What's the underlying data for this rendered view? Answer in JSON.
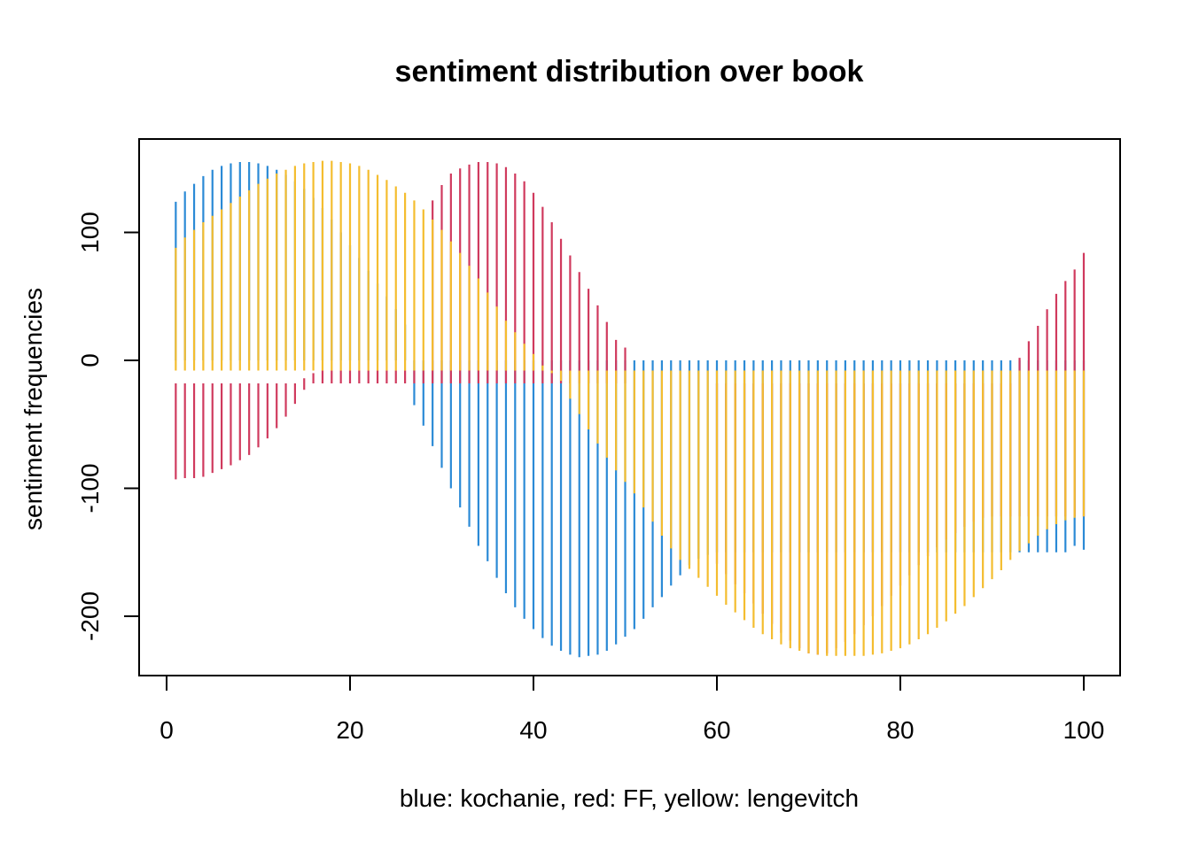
{
  "chart_data": {
    "type": "bar",
    "title": "sentiment distribution over book",
    "xlabel": "blue: kochanie, red: FF, yellow: lengevitch",
    "ylabel": "sentiment frequencies",
    "xlim": [
      0,
      100
    ],
    "ylim": [
      -250,
      160
    ],
    "x_ticks": [
      0,
      20,
      40,
      60,
      80,
      100
    ],
    "y_ticks": [
      -200,
      -100,
      0,
      100
    ],
    "x_tick_labels": [
      "0",
      "20",
      "40",
      "60",
      "80",
      "100"
    ],
    "y_tick_labels": [
      "-200",
      "-100",
      "0",
      "100"
    ],
    "grid": false,
    "legend": "none",
    "x": [
      1,
      2,
      3,
      4,
      5,
      6,
      7,
      8,
      9,
      10,
      11,
      12,
      13,
      14,
      15,
      16,
      17,
      18,
      19,
      20,
      21,
      22,
      23,
      24,
      25,
      26,
      27,
      28,
      29,
      30,
      31,
      32,
      33,
      34,
      35,
      36,
      37,
      38,
      39,
      40,
      41,
      42,
      43,
      44,
      45,
      46,
      47,
      48,
      49,
      50,
      51,
      52,
      53,
      54,
      55,
      56,
      57,
      58,
      59,
      60,
      61,
      62,
      63,
      64,
      65,
      66,
      67,
      68,
      69,
      70,
      71,
      72,
      73,
      74,
      75,
      76,
      77,
      78,
      79,
      80,
      81,
      82,
      83,
      84,
      85,
      86,
      87,
      88,
      89,
      90,
      91,
      92,
      93,
      94,
      95,
      96,
      97,
      98,
      99,
      100
    ],
    "series": [
      {
        "color": "#2b8ad6",
        "low": [
          0,
          0,
          0,
          0,
          0,
          0,
          0,
          0,
          0,
          0,
          0,
          0,
          0,
          0,
          0,
          0,
          0,
          0,
          0,
          0,
          0,
          0,
          0,
          0,
          0,
          0,
          -35,
          -51,
          -67,
          -84,
          -100,
          -115,
          -130,
          -145,
          -157,
          -170,
          -182,
          -193,
          -202,
          -210,
          -217,
          -223,
          -227,
          -230,
          -232,
          -231,
          -230,
          -227,
          -222,
          -216,
          -210,
          -202,
          -193,
          -185,
          -176,
          -168,
          -160,
          -155,
          -152,
          -150,
          -150,
          -150,
          -150,
          -150,
          -150,
          -150,
          -150,
          -150,
          -150,
          -150,
          -150,
          -150,
          -150,
          -150,
          -150,
          -150,
          -150,
          -150,
          -150,
          -150,
          -150,
          -150,
          -150,
          -150,
          -150,
          -150,
          -150,
          -150,
          -150,
          -150,
          -150,
          -150,
          -150,
          -150,
          -150,
          -150,
          -150,
          -150,
          -145,
          -148
        ],
        "high": [
          124,
          132,
          138,
          144,
          149,
          152,
          154,
          155,
          155,
          154,
          152,
          149,
          145,
          140,
          134,
          127,
          119,
          110,
          100,
          90,
          80,
          70,
          60,
          50,
          40,
          28,
          0,
          0,
          0,
          0,
          0,
          0,
          0,
          0,
          0,
          0,
          0,
          0,
          0,
          0,
          0,
          0,
          0,
          0,
          0,
          0,
          0,
          0,
          0,
          0,
          0,
          0,
          0,
          0,
          0,
          0,
          0,
          0,
          0,
          0,
          0,
          0,
          0,
          0,
          0,
          0,
          0,
          0,
          0,
          0,
          0,
          0,
          0,
          0,
          0,
          0,
          0,
          0,
          0,
          0,
          0,
          0,
          0,
          0,
          0,
          0,
          0,
          0,
          0,
          0,
          0,
          0,
          0,
          0,
          0,
          0,
          0,
          0,
          0,
          0
        ]
      },
      {
        "color": "#d03a5e",
        "low": [
          -93,
          -92,
          -92,
          -91,
          -88,
          -85,
          -82,
          -78,
          -74,
          -68,
          -61,
          -53,
          -44,
          -34,
          -23,
          -18,
          -18,
          -18,
          -18,
          -18,
          -18,
          -18,
          -18,
          -18,
          -18,
          -18,
          -18,
          -18,
          -18,
          -18,
          -18,
          -18,
          -18,
          -18,
          -18,
          -18,
          -18,
          -18,
          -18,
          -18,
          -18,
          -18,
          -18,
          -18,
          -18,
          -18,
          -18,
          -18,
          -18,
          -18,
          -18,
          -18,
          -18,
          -18,
          -18,
          -18,
          -18,
          -18,
          -18,
          -159,
          -167,
          -175,
          -182,
          -190,
          -198,
          -206,
          -213,
          -219,
          -225,
          -229,
          -230,
          -229,
          -225,
          -220,
          -214,
          -207,
          -200,
          -192,
          -184,
          -176,
          -168,
          -160,
          -153,
          -146,
          -140,
          -135,
          -130,
          -126,
          -123,
          -122,
          -122,
          -122,
          -122,
          -122,
          -122,
          -122,
          -122,
          -122,
          -122,
          -122
        ],
        "high": [
          -18,
          -18,
          -18,
          -18,
          -18,
          -18,
          -18,
          -18,
          -18,
          -18,
          -18,
          -18,
          -18,
          -18,
          -14,
          -10,
          -8,
          -8,
          -8,
          -8,
          -8,
          -8,
          -8,
          -8,
          -8,
          -8,
          -8,
          -8,
          125,
          137,
          146,
          150,
          153,
          155,
          155,
          154,
          151,
          146,
          140,
          131,
          120,
          108,
          95,
          82,
          69,
          56,
          43,
          30,
          16,
          10,
          -18,
          -18,
          -18,
          -18,
          -18,
          -18,
          -18,
          -18,
          -18,
          -18,
          -18,
          -18,
          -18,
          -18,
          -18,
          -18,
          -18,
          -18,
          -18,
          -18,
          -18,
          -18,
          -18,
          -18,
          -18,
          -18,
          -18,
          -18,
          -18,
          -18,
          -18,
          -18,
          -18,
          -18,
          -18,
          -18,
          -18,
          -18,
          -18,
          -18,
          -18,
          -18,
          2,
          15,
          27,
          40,
          52,
          62,
          71,
          84
        ]
      },
      {
        "color": "#f4bd2f",
        "low": [
          -8,
          -8,
          -8,
          -8,
          -8,
          -8,
          -8,
          -8,
          -8,
          -8,
          -8,
          -8,
          -8,
          -8,
          -8,
          -8,
          -8,
          -8,
          -8,
          -8,
          -8,
          -8,
          -8,
          -8,
          -8,
          -8,
          -8,
          -8,
          -8,
          -8,
          -8,
          -8,
          -8,
          -8,
          -8,
          -8,
          -8,
          -8,
          -8,
          -8,
          -8,
          -10,
          -16,
          -30,
          -42,
          -54,
          -65,
          -76,
          -86,
          -95,
          -104,
          -115,
          -126,
          -137,
          -147,
          -156,
          -163,
          -170,
          -177,
          -184,
          -191,
          -197,
          -203,
          -209,
          -214,
          -218,
          -222,
          -225,
          -227,
          -229,
          -230,
          -231,
          -231,
          -231,
          -231,
          -231,
          -230,
          -229,
          -227,
          -225,
          -222,
          -218,
          -214,
          -209,
          -204,
          -198,
          -192,
          -185,
          -178,
          -171,
          -164,
          -156,
          -149,
          -143,
          -137,
          -132,
          -128,
          -125,
          -123,
          -122
        ],
        "high": [
          88,
          96,
          102,
          108,
          113,
          118,
          123,
          128,
          133,
          138,
          142,
          146,
          149,
          152,
          154,
          155,
          156,
          156,
          155,
          154,
          152,
          149,
          145,
          141,
          136,
          131,
          125,
          118,
          110,
          102,
          93,
          84,
          74,
          64,
          53,
          42,
          31,
          22,
          13,
          5,
          -4,
          -8,
          -8,
          -8,
          -8,
          -8,
          -8,
          -8,
          -8,
          -8,
          -8,
          -8,
          -8,
          -8,
          -8,
          -8,
          -8,
          -8,
          -8,
          -8,
          -8,
          -8,
          -8,
          -8,
          -8,
          -8,
          -8,
          -8,
          -8,
          -8,
          -8,
          -8,
          -8,
          -8,
          -8,
          -8,
          -8,
          -8,
          -8,
          -8,
          -8,
          -8,
          -8,
          -8,
          -8,
          -8,
          -8,
          -8,
          -8,
          -8,
          -8,
          -8,
          -8,
          -8,
          -8,
          -8,
          -8,
          -8,
          -8,
          -8
        ]
      }
    ]
  }
}
